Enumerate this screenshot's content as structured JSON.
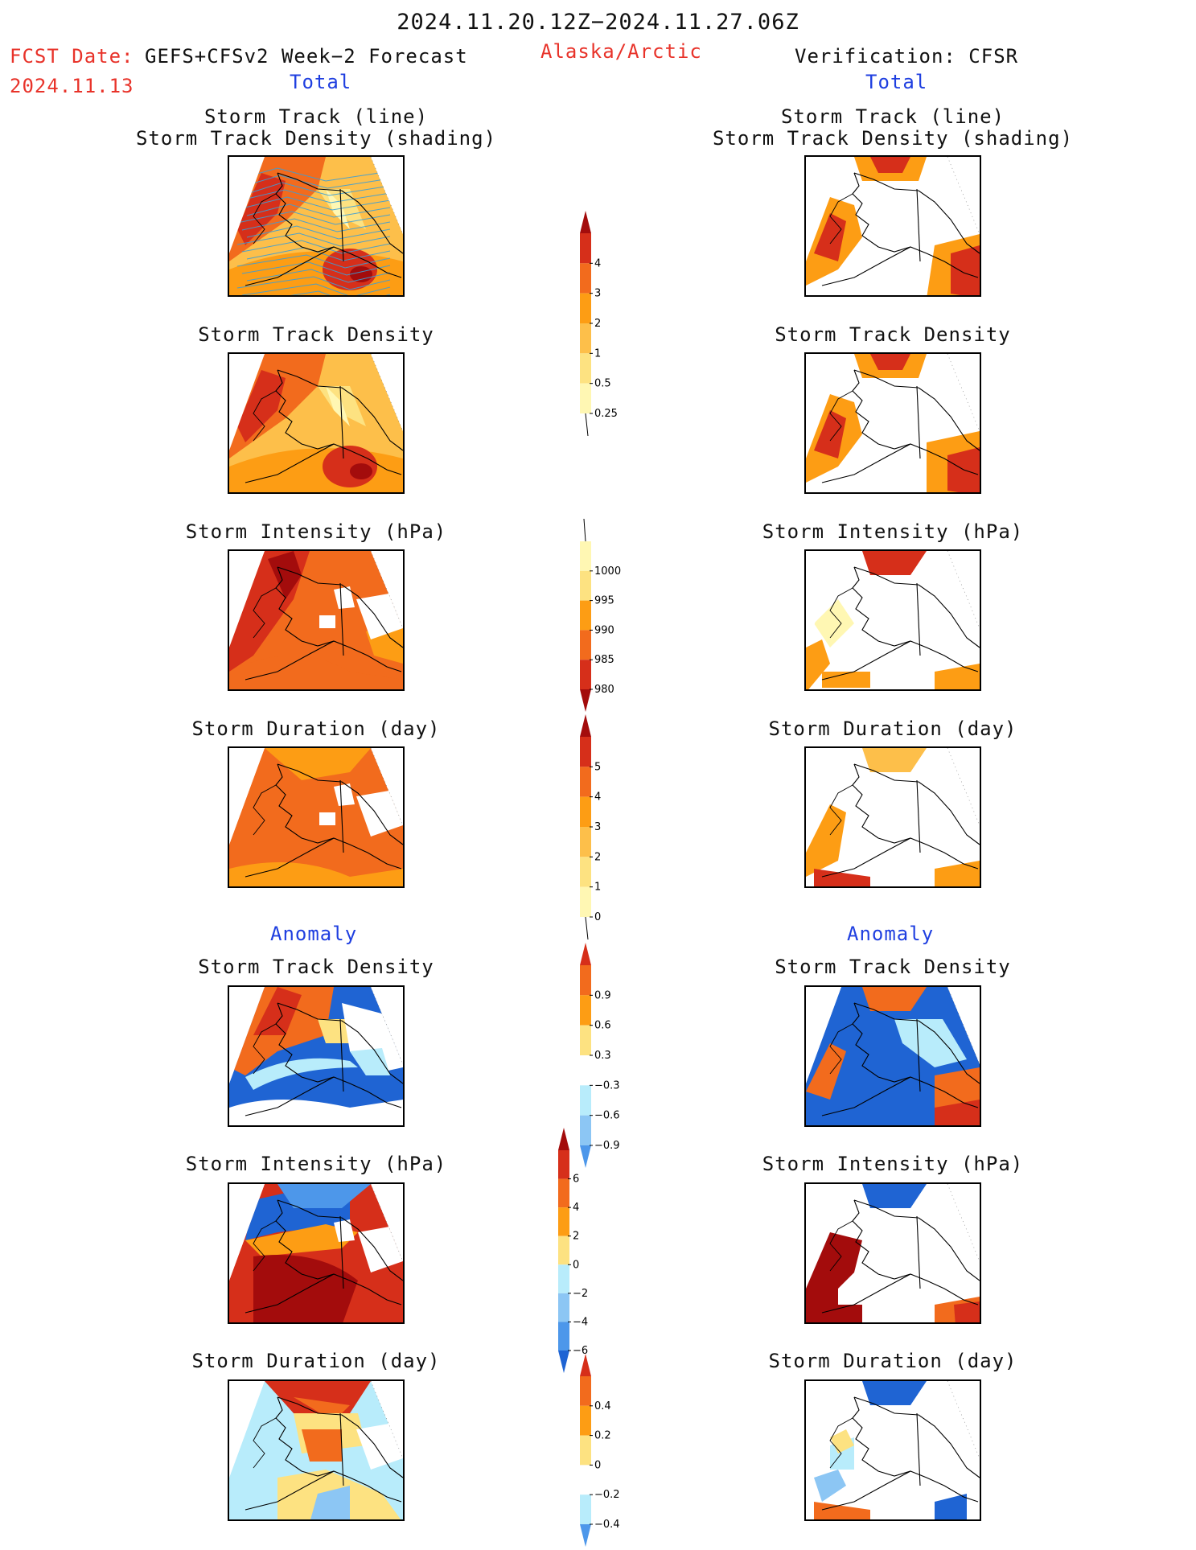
{
  "header": {
    "period": "2024.11.20.12Z−2024.11.27.06Z",
    "fcst_label": "FCST Date:",
    "fcst_model": "GEFS+CFSv2 Week−2 Forecast",
    "fcst_date": "2024.11.13",
    "region": "Alaska/Arctic",
    "verification": "Verification: CFSR"
  },
  "sections": {
    "total": "Total",
    "anomaly": "Anomaly"
  },
  "captions": {
    "track_line": "Storm Track (line)",
    "track_density_shading": "Storm Track Density (shading)",
    "density": "Storm Track Density",
    "intensity": "Storm Intensity (hPa)",
    "duration": "Storm Duration (day)"
  },
  "colors": {
    "pale_yellow": "#fff7b3",
    "yellow": "#fde281",
    "light_orange": "#fdbf4a",
    "orange": "#fd9d14",
    "dark_orange": "#f26b1d",
    "red": "#d62f1a",
    "dark_red": "#a30c0c",
    "light_blue": "#b8ecfb",
    "sky_blue": "#8cc6f4",
    "mid_blue": "#4d97ea",
    "blue": "#1f64d3",
    "dark_blue": "#1949b0",
    "track_line": "#3b9ed8"
  },
  "chart_data": [
    {
      "type": "heatmap",
      "title": "Storm Track Density",
      "units": "",
      "colorbar_ticks": [
        "0.25",
        "0.5",
        "1",
        "2",
        "3",
        "4"
      ],
      "panels": [
        "Forecast",
        "Verification: CFSR"
      ]
    },
    {
      "type": "heatmap",
      "title": "Storm Intensity (hPa)",
      "colorbar_ticks": [
        "1000",
        "995",
        "990",
        "985",
        "980"
      ]
    },
    {
      "type": "heatmap",
      "title": "Storm Duration (day)",
      "colorbar_ticks": [
        "5",
        "4",
        "3",
        "2",
        "1",
        "0"
      ]
    },
    {
      "type": "heatmap",
      "title": "Anomaly Storm Track Density",
      "colorbar_ticks": [
        "0.9",
        "0.6",
        "0.3",
        "−0.3",
        "−0.6",
        "−0.9"
      ]
    },
    {
      "type": "heatmap",
      "title": "Anomaly Storm Intensity (hPa)",
      "colorbar_ticks": [
        "6",
        "4",
        "2",
        "0",
        "−2",
        "−4",
        "−6"
      ]
    },
    {
      "type": "heatmap",
      "title": "Anomaly Storm Duration (day)",
      "colorbar_ticks": [
        "0.4",
        "0.2",
        "0",
        "−0.2",
        "−0.4"
      ]
    }
  ]
}
